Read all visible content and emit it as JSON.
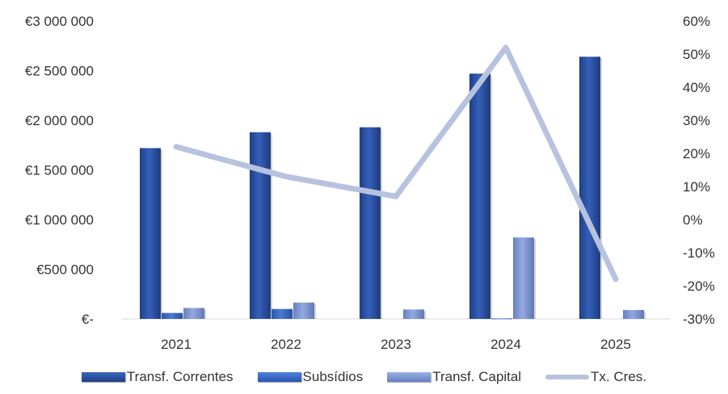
{
  "chart_data": {
    "type": "bar",
    "categories": [
      "2021",
      "2022",
      "2023",
      "2024",
      "2025"
    ],
    "series": [
      {
        "name": "Transf. Correntes",
        "type": "bar",
        "axis": "left",
        "color": "#2F55A4",
        "values": [
          1720000,
          1880000,
          1930000,
          2470000,
          2640000
        ]
      },
      {
        "name": "Subsídios",
        "type": "bar",
        "axis": "left",
        "color": "#3D6CC8",
        "values": [
          60000,
          100000,
          0,
          5000,
          0
        ]
      },
      {
        "name": "Transf. Capital",
        "type": "bar",
        "axis": "left",
        "color": "#7F97D3",
        "values": [
          110000,
          165000,
          95000,
          820000,
          90000
        ]
      },
      {
        "name": "Tx. Cres.",
        "type": "line",
        "axis": "right",
        "color": "#B7C3DE",
        "values": [
          0.22,
          0.13,
          0.07,
          0.52,
          -0.18
        ]
      }
    ],
    "y_left": {
      "ylim": [
        0,
        3000000
      ],
      "ticks": [
        0,
        500000,
        1000000,
        1500000,
        2000000,
        2500000,
        3000000
      ],
      "tick_labels": [
        "€-",
        "€500 000",
        "€1 000 000",
        "€1 500 000",
        "€2 000 000",
        "€2 500 000",
        "€3 000 000"
      ]
    },
    "y_right": {
      "ylim": [
        -0.3,
        0.6
      ],
      "ticks": [
        -0.3,
        -0.2,
        -0.1,
        0,
        0.1,
        0.2,
        0.3,
        0.4,
        0.5,
        0.6
      ],
      "tick_labels": [
        "-30%",
        "-20%",
        "-10%",
        "0%",
        "10%",
        "20%",
        "30%",
        "40%",
        "50%",
        "60%"
      ]
    },
    "grid": false,
    "legend_position": "bottom"
  }
}
